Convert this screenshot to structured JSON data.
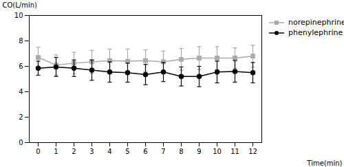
{
  "chart_data": {
    "type": "line",
    "xlabel": "Time(min)",
    "ylabel": "CO(L/min)",
    "x": [
      0,
      1,
      2,
      3,
      4,
      5,
      6,
      7,
      8,
      9,
      10,
      11,
      12
    ],
    "series": [
      {
        "name": "norepinephrine",
        "color": "#aaaaaa",
        "marker": "square",
        "values": [
          6.7,
          6.1,
          6.25,
          6.35,
          6.45,
          6.4,
          6.45,
          6.35,
          6.55,
          6.65,
          6.65,
          6.65,
          6.8
        ],
        "error": [
          0.8,
          0.8,
          0.85,
          0.9,
          0.9,
          0.95,
          0.85,
          0.85,
          0.85,
          0.9,
          0.9,
          0.8,
          0.85
        ]
      },
      {
        "name": "phenylephrine",
        "color": "#000000",
        "marker": "circle",
        "values": [
          5.85,
          5.95,
          5.85,
          5.7,
          5.55,
          5.5,
          5.35,
          5.55,
          5.2,
          5.2,
          5.55,
          5.6,
          5.5
        ],
        "error": [
          0.55,
          0.75,
          0.65,
          0.8,
          0.8,
          0.75,
          0.8,
          0.75,
          0.75,
          0.8,
          0.85,
          0.85,
          0.8
        ]
      }
    ],
    "xlim": [
      -0.5,
      12.5
    ],
    "xticks": [
      0,
      1,
      2,
      3,
      4,
      5,
      6,
      7,
      8,
      9,
      10,
      11,
      12
    ],
    "ylim": [
      0,
      10
    ],
    "yticks": [
      0,
      2,
      4,
      6,
      8,
      10
    ],
    "grid": false,
    "legend": "upper right"
  }
}
